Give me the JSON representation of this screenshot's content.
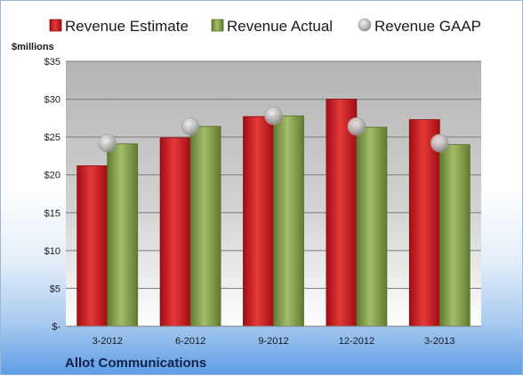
{
  "chart_data": {
    "type": "bar",
    "categories": [
      "3-2012",
      "6-2012",
      "9-2012",
      "12-2012",
      "3-2013"
    ],
    "series": [
      {
        "name": "Revenue Estimate",
        "values": [
          21.2,
          24.9,
          27.7,
          30.0,
          27.3
        ],
        "color": "#c7161b",
        "kind": "bar"
      },
      {
        "name": "Revenue Actual",
        "values": [
          24.1,
          26.4,
          27.8,
          26.3,
          24.0
        ],
        "color": "#7f9a44",
        "kind": "bar"
      },
      {
        "name": "Revenue GAAP",
        "values": [
          24.2,
          26.4,
          27.8,
          26.4,
          24.2
        ],
        "color": "#b9b9b9",
        "kind": "marker"
      }
    ],
    "ylabel": "$millions",
    "ylim": [
      0,
      35
    ],
    "yticks": [
      0,
      5,
      10,
      15,
      20,
      25,
      30,
      35
    ],
    "ytick_labels": [
      "$-",
      "$5",
      "$10",
      "$15",
      "$20",
      "$25",
      "$30",
      "$35"
    ],
    "grid": true,
    "legend_position": "top",
    "company": "Allot Communications"
  }
}
